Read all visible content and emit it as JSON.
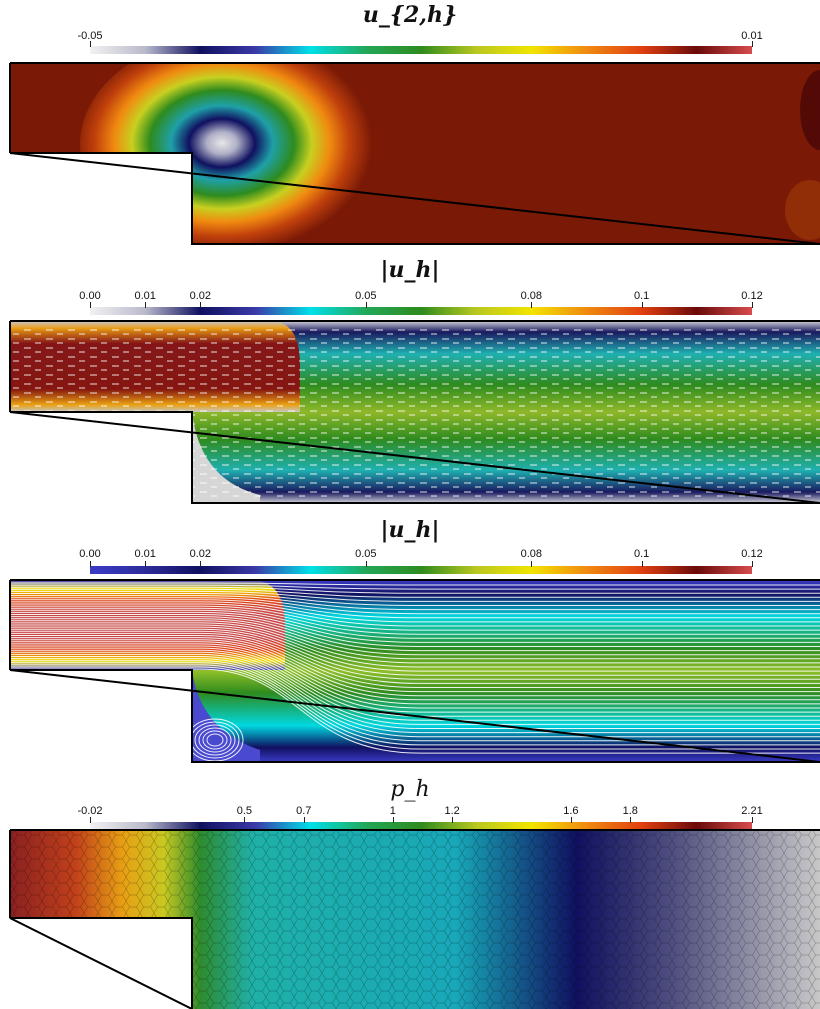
{
  "chart_data": [
    {
      "type": "heatmap",
      "title": "u_{2,h}",
      "colormap": [
        "#f2f2f2",
        "#b9b9cc",
        "#101060",
        "#3a3aa8",
        "#00e0e8",
        "#22a858",
        "#2e8b1e",
        "#b8c820",
        "#f2e400",
        "#f08a10",
        "#e04010",
        "#6a0a0a",
        "#d84c4c"
      ],
      "colorbar": {
        "min": -0.05,
        "max": 0.01,
        "ticks": [
          {
            "value": -0.05,
            "label": "-0.05"
          },
          {
            "value": 0.01,
            "label": "0.01"
          }
        ]
      }
    },
    {
      "type": "heatmap",
      "title": "|u_h|",
      "overlay": "velocity-arrows",
      "colormap": [
        "#f2f2f2",
        "#b9b9cc",
        "#101060",
        "#3a3aa8",
        "#00e0e8",
        "#22a858",
        "#2e8b1e",
        "#b8c820",
        "#f2e400",
        "#f08a10",
        "#e04010",
        "#6a0a0a",
        "#d84c4c"
      ],
      "colorbar": {
        "min": 0.0,
        "max": 0.12,
        "ticks": [
          {
            "value": 0.0,
            "label": "0.00"
          },
          {
            "value": 0.01,
            "label": "0.01"
          },
          {
            "value": 0.02,
            "label": "0.02"
          },
          {
            "value": 0.05,
            "label": "0.05"
          },
          {
            "value": 0.08,
            "label": "0.08"
          },
          {
            "value": 0.1,
            "label": "0.1"
          },
          {
            "value": 0.12,
            "label": "0.12"
          }
        ]
      }
    },
    {
      "type": "heatmap",
      "title": "|u_h|",
      "overlay": "streamlines",
      "colormap": [
        "#3b3bc8",
        "#2d2d9a",
        "#101060",
        "#3a3aa8",
        "#00e0e8",
        "#22a858",
        "#2e8b1e",
        "#b8c820",
        "#f2e400",
        "#f08a10",
        "#e04010",
        "#6a0a0a",
        "#d84c4c"
      ],
      "colorbar": {
        "min": 0.0,
        "max": 0.12,
        "ticks": [
          {
            "value": 0.0,
            "label": "0.00"
          },
          {
            "value": 0.01,
            "label": "0.01"
          },
          {
            "value": 0.02,
            "label": "0.02"
          },
          {
            "value": 0.05,
            "label": "0.05"
          },
          {
            "value": 0.08,
            "label": "0.08"
          },
          {
            "value": 0.1,
            "label": "0.1"
          },
          {
            "value": 0.12,
            "label": "0.12"
          }
        ]
      }
    },
    {
      "type": "heatmap",
      "title": "p_h",
      "overlay": "polygonal-mesh",
      "colormap": [
        "#f2f2f2",
        "#b9b9cc",
        "#101060",
        "#3a3aa8",
        "#00e0e8",
        "#22a858",
        "#2e8b1e",
        "#b8c820",
        "#f2e400",
        "#f08a10",
        "#e04010",
        "#6a0a0a",
        "#d84c4c"
      ],
      "colorbar": {
        "min": -0.02,
        "max": 2.21,
        "ticks": [
          {
            "value": -0.02,
            "label": "-0.02"
          },
          {
            "value": 0.5,
            "label": "0.5"
          },
          {
            "value": 0.7,
            "label": "0.7"
          },
          {
            "value": 1.0,
            "label": "1"
          },
          {
            "value": 1.2,
            "label": "1.2"
          },
          {
            "value": 1.6,
            "label": "1.6"
          },
          {
            "value": 1.8,
            "label": "1.8"
          },
          {
            "value": 2.21,
            "label": "2.21"
          }
        ]
      }
    }
  ]
}
